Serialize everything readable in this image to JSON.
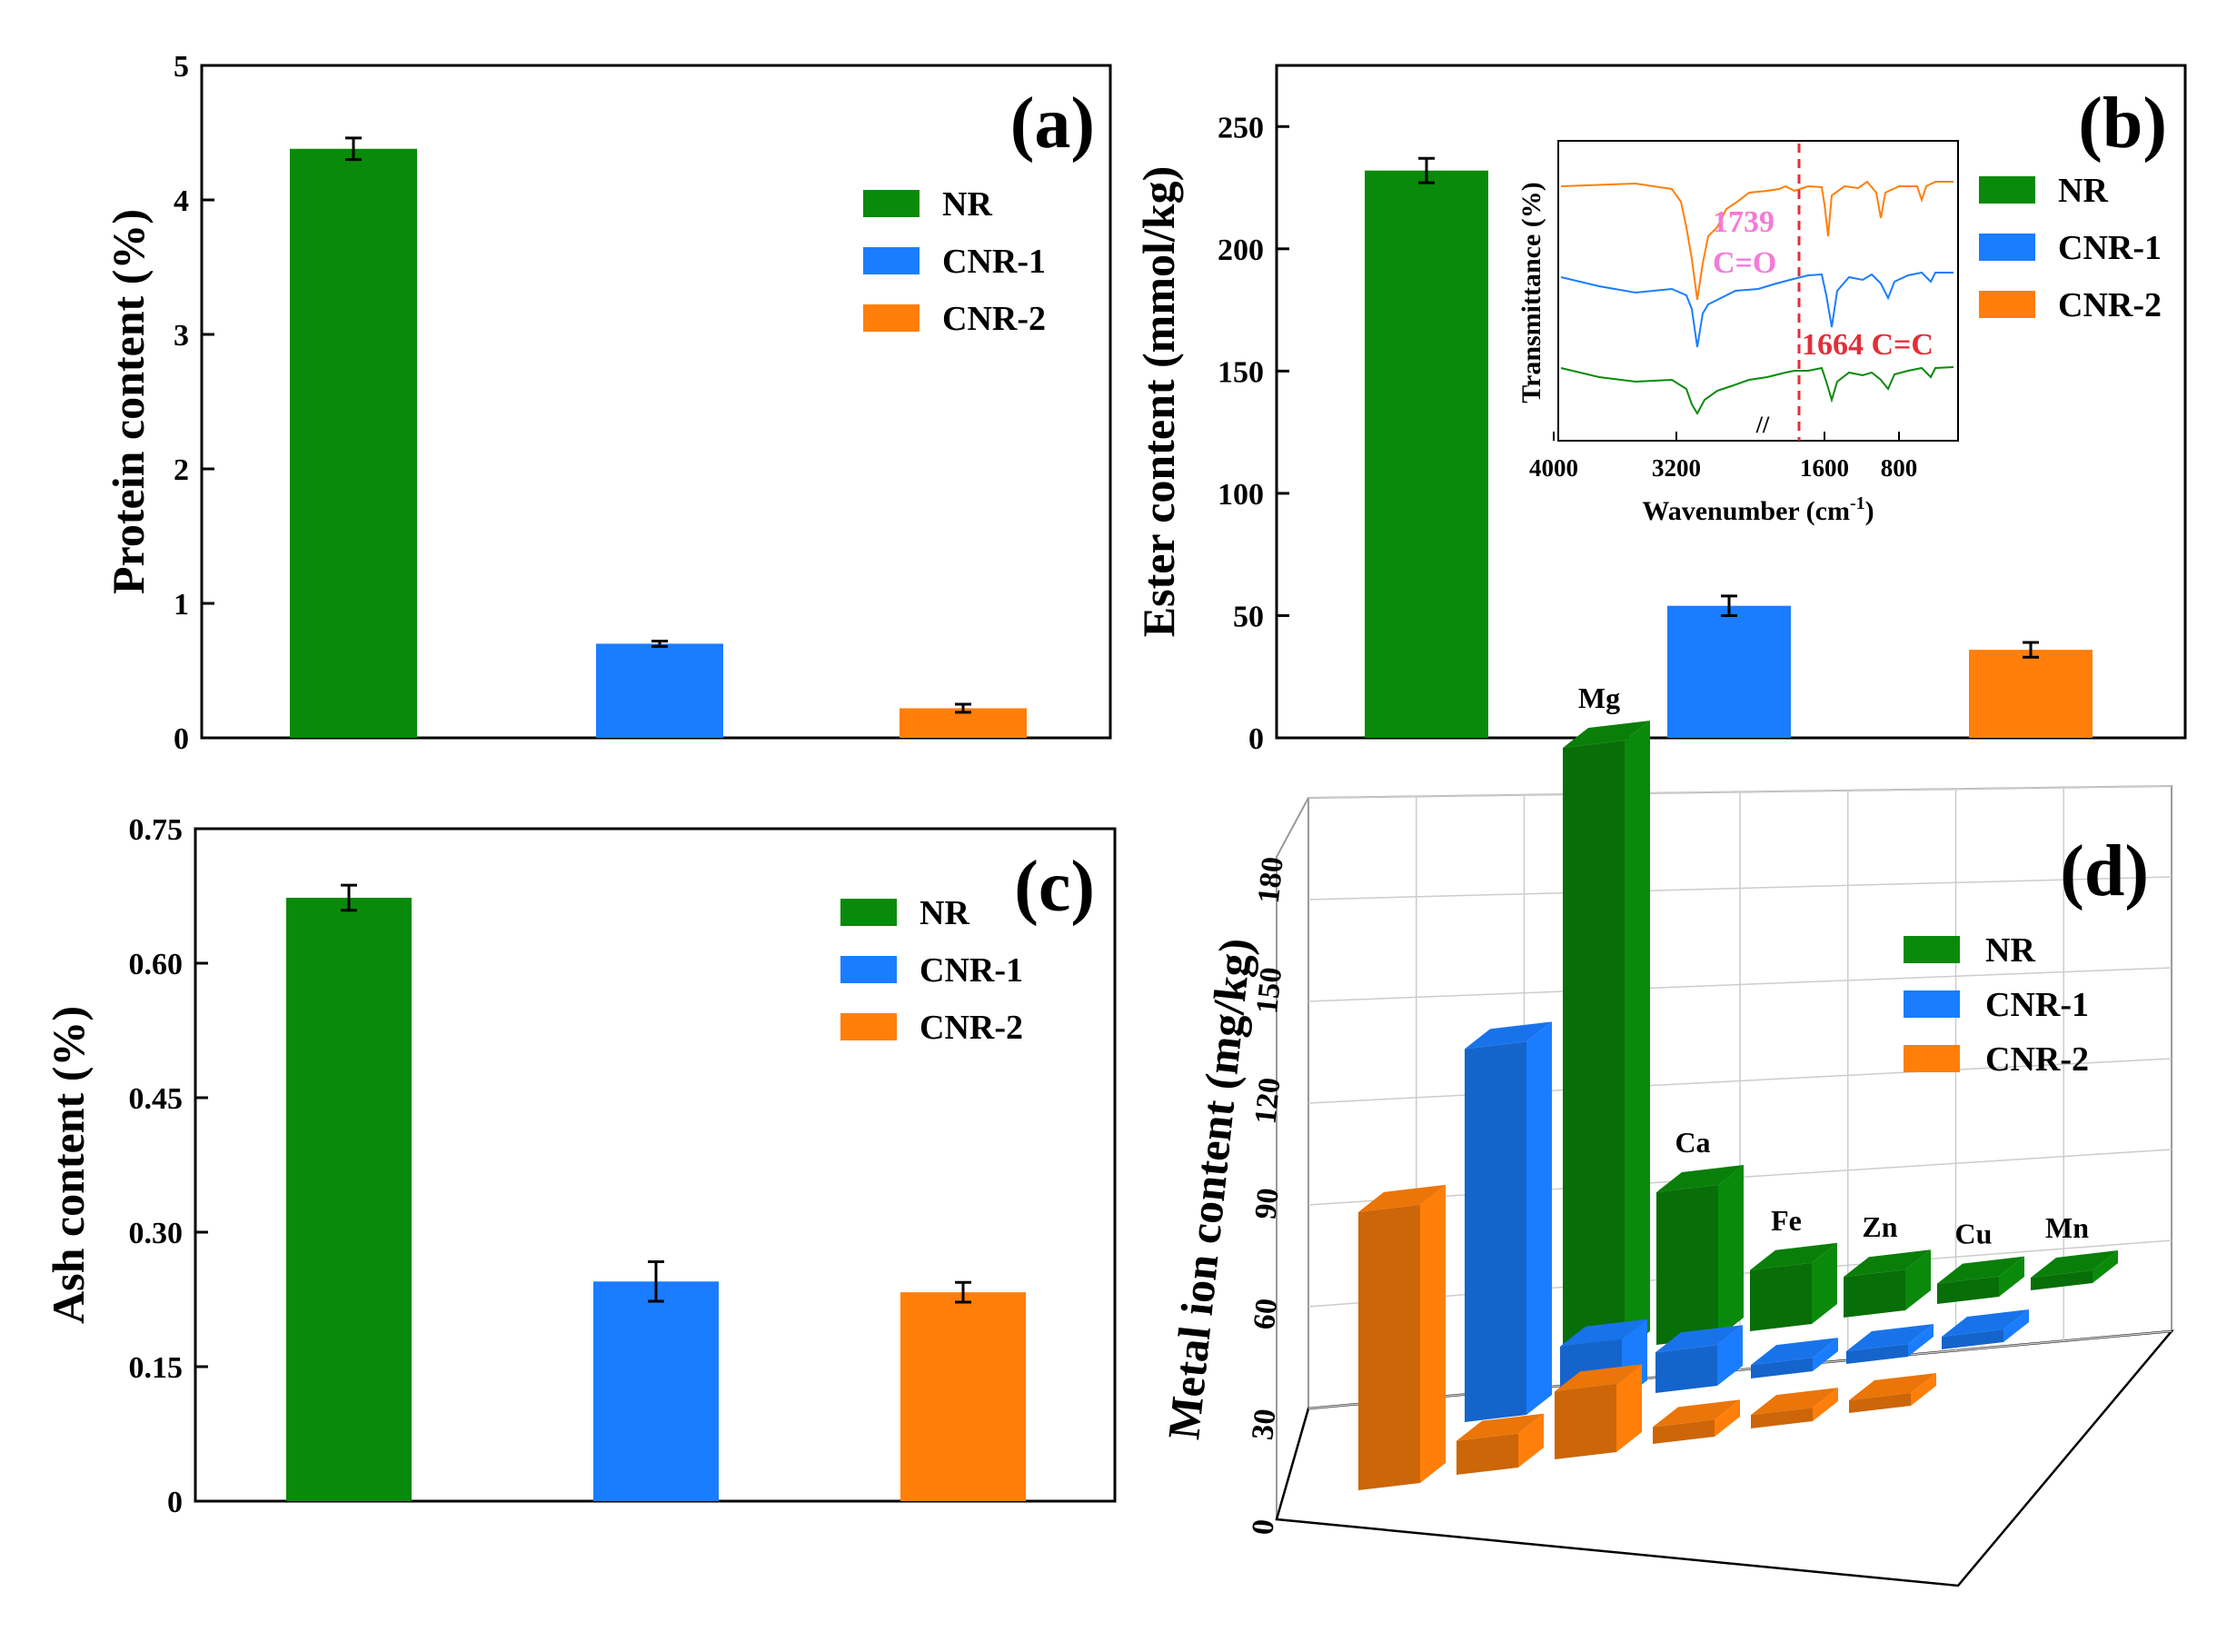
{
  "colors": {
    "NR": "#0a8a0a",
    "CNR-1": "#1a7dff",
    "CNR-2": "#ff7f0a"
  },
  "chart_data": [
    {
      "panel": "(a)",
      "type": "bar",
      "categories": [
        "NR",
        "CNR-1",
        "CNR-2"
      ],
      "values": [
        4.38,
        0.7,
        0.22
      ],
      "errors": [
        0.08,
        0.02,
        0.03
      ],
      "ylabel": "Protein content (%)",
      "ylim": [
        0,
        5
      ],
      "yticks": [
        "0",
        "1",
        "2",
        "3",
        "4",
        "5"
      ],
      "legend": [
        "NR",
        "CNR-1",
        "CNR-2"
      ]
    },
    {
      "panel": "(b)",
      "type": "bar",
      "categories": [
        "NR",
        "CNR-1",
        "CNR-2"
      ],
      "values": [
        232,
        54,
        36
      ],
      "errors": [
        5,
        4,
        3
      ],
      "ylabel": "Ester content (mmol/kg)",
      "ylim": [
        0,
        275
      ],
      "yticks": [
        "0",
        "50",
        "100",
        "150",
        "200",
        "250"
      ],
      "legend": [
        "NR",
        "CNR-1",
        "CNR-2"
      ],
      "inset": {
        "type": "line",
        "xlabel": "Wavenumber (cm",
        "xlabel_sup": "-1",
        "xlabel_end": ")",
        "ylabel": "Transmittance (%)",
        "xticks": [
          "4000",
          "3200",
          "1600",
          "800"
        ],
        "break_mark": "//",
        "annotations": [
          {
            "label": "1739",
            "sub": "C=O"
          },
          {
            "label": "1664 C=C"
          }
        ]
      }
    },
    {
      "panel": "(c)",
      "type": "bar",
      "categories": [
        "NR",
        "CNR-1",
        "CNR-2"
      ],
      "values": [
        0.673,
        0.245,
        0.233
      ],
      "errors": [
        0.014,
        0.022,
        0.011
      ],
      "ylabel": "Ash content (%)",
      "ylim": [
        0,
        0.75
      ],
      "yticks": [
        "0",
        "0.15",
        "0.30",
        "0.45",
        "0.60",
        "0.75"
      ],
      "legend": [
        "NR",
        "CNR-1",
        "CNR-2"
      ]
    },
    {
      "panel": "(d)",
      "type": "bar3d",
      "elements": [
        "Mg",
        "Ca",
        "Fe",
        "Zn",
        "Cu",
        "Mn"
      ],
      "series": [
        {
          "name": "NR",
          "values": [
            180,
            45,
            18,
            12,
            6,
            3
          ]
        },
        {
          "name": "CNR-1",
          "values": [
            110,
            18,
            12,
            4,
            2,
            1
          ]
        },
        {
          "name": "CNR-2",
          "values": [
            82,
            10,
            20,
            5,
            4,
            3
          ]
        }
      ],
      "ylabel": "Metal ion content (mg/kg)",
      "ylim": [
        0,
        180
      ],
      "yticks": [
        "0",
        "30",
        "60",
        "90",
        "120",
        "150",
        "180"
      ],
      "legend": [
        "NR",
        "CNR-1",
        "CNR-2"
      ]
    }
  ]
}
